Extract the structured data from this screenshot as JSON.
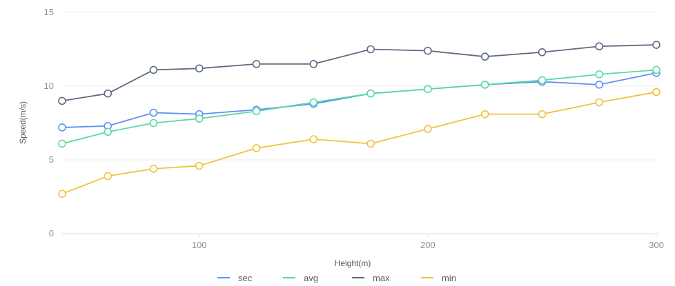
{
  "chart_data": {
    "type": "line",
    "title": "",
    "xlabel": "Height(m)",
    "ylabel": "Speed(m/s)",
    "x": [
      40,
      60,
      80,
      100,
      125,
      150,
      175,
      200,
      225,
      250,
      275,
      300
    ],
    "xticks": [
      100,
      200,
      300
    ],
    "yticks": [
      0,
      5,
      10,
      15
    ],
    "ylim": [
      0,
      15
    ],
    "xlim": [
      40,
      300
    ],
    "grid": "horizontal",
    "legend_position": "bottom",
    "series": [
      {
        "name": "sec",
        "color": "#5b8ff9",
        "values": [
          7.2,
          7.3,
          8.2,
          8.1,
          8.4,
          8.8,
          9.5,
          9.8,
          10.1,
          10.3,
          10.1,
          10.9
        ]
      },
      {
        "name": "avg",
        "color": "#5ad8a6",
        "values": [
          6.1,
          6.9,
          7.5,
          7.8,
          8.3,
          8.9,
          9.5,
          9.8,
          10.1,
          10.4,
          10.8,
          11.1
        ]
      },
      {
        "name": "max",
        "color": "#5d6a80",
        "values": [
          9.0,
          9.5,
          11.1,
          11.2,
          11.5,
          11.5,
          12.5,
          12.4,
          12.0,
          12.3,
          12.7,
          12.8
        ]
      },
      {
        "name": "min",
        "color": "#f0c23b",
        "values": [
          2.7,
          3.9,
          4.4,
          4.6,
          5.8,
          6.4,
          6.1,
          7.1,
          8.1,
          8.1,
          8.9,
          9.6
        ]
      }
    ]
  }
}
